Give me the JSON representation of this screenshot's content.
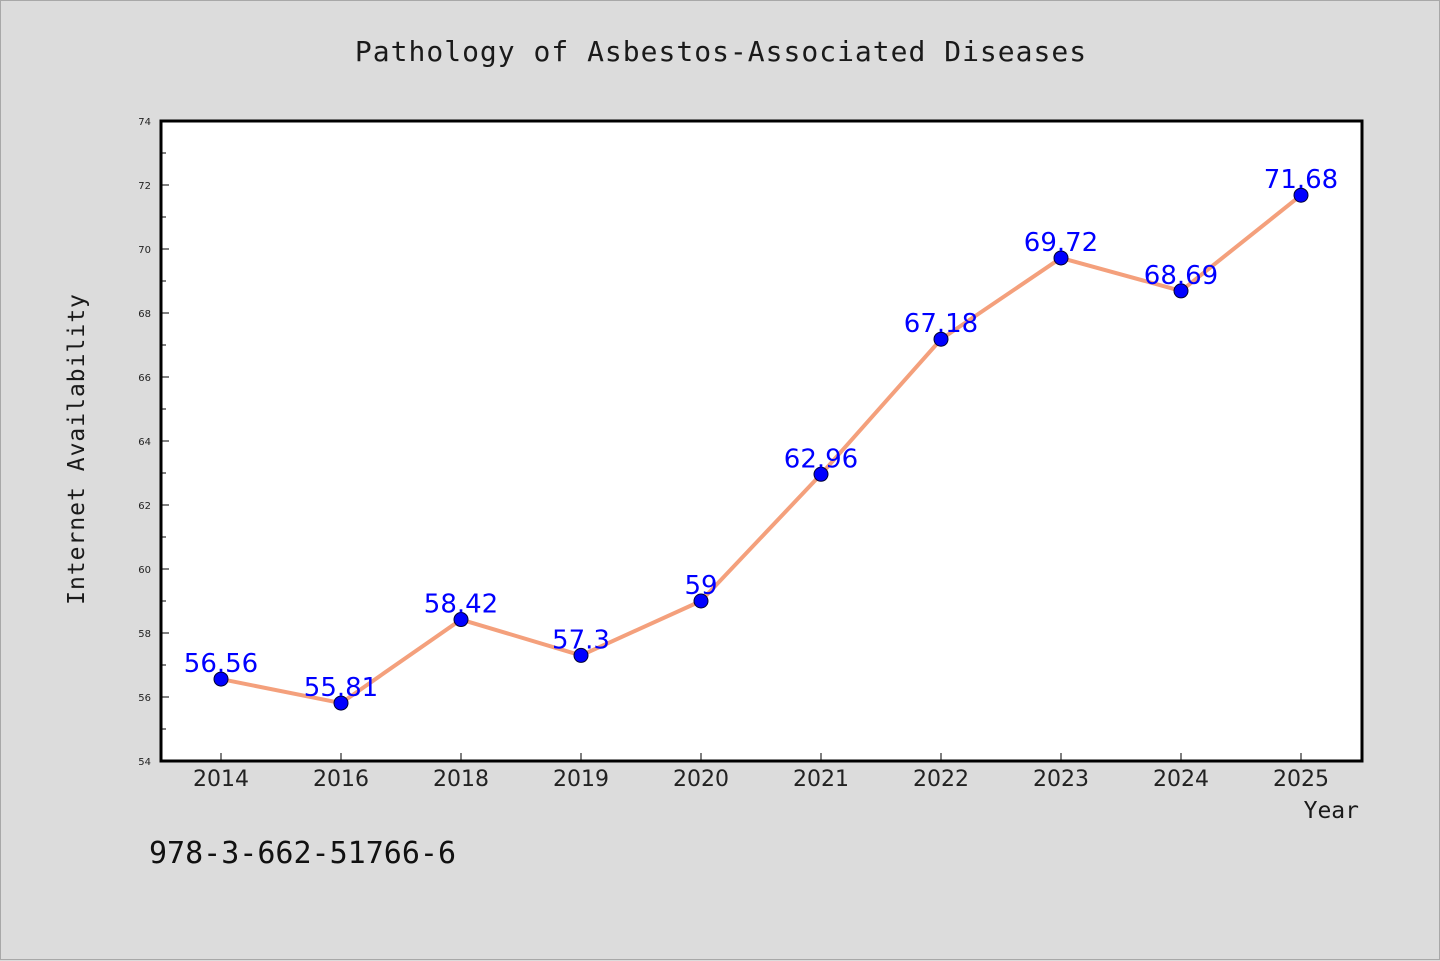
{
  "chart_data": {
    "type": "line",
    "title": "Pathology of Asbestos-Associated Diseases",
    "xlabel": "Year",
    "ylabel": "Internet Availability",
    "categories": [
      "2014",
      "2016",
      "2018",
      "2019",
      "2020",
      "2021",
      "2022",
      "2023",
      "2024",
      "2025"
    ],
    "values": [
      56.56,
      55.81,
      58.42,
      57.3,
      59,
      62.96,
      67.18,
      69.72,
      68.69,
      71.68
    ],
    "data_labels": [
      "56.56",
      "55.81",
      "58.42",
      "57.3",
      "59",
      "62.96",
      "67.18",
      "69.72",
      "68.69",
      "71.68"
    ],
    "ylim": [
      54,
      74
    ],
    "yticks": [
      54,
      56,
      58,
      60,
      62,
      64,
      66,
      68,
      70,
      72,
      74
    ],
    "grid": false,
    "legend": "none",
    "line_color": "#f4a07c",
    "marker_color": "#0000ff",
    "label_color": "#0000ff"
  },
  "footer": {
    "isbn": "978-3-662-51766-6"
  }
}
